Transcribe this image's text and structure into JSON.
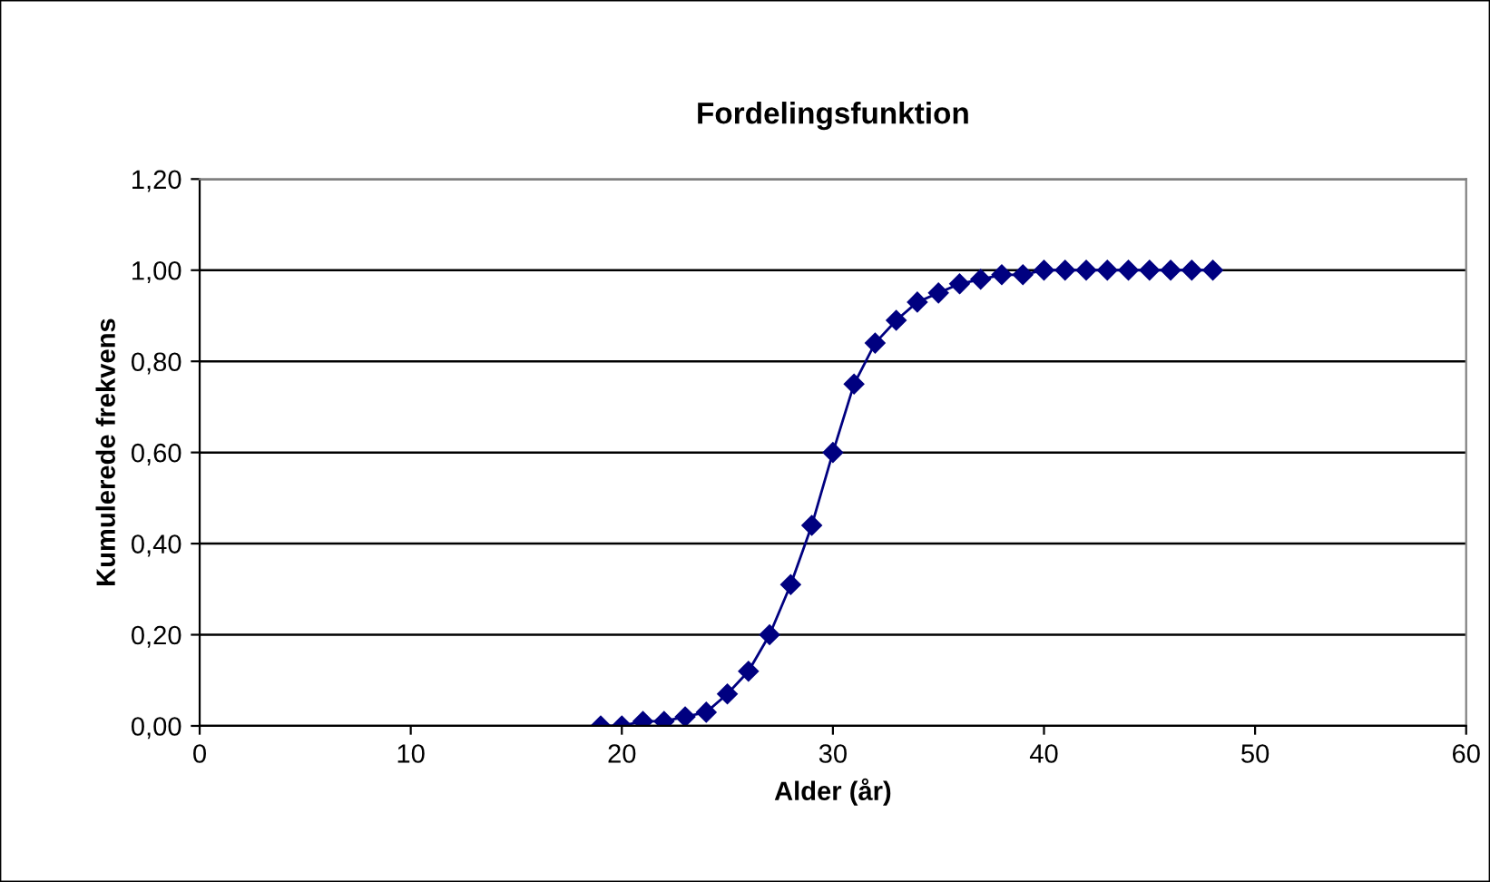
{
  "chart_data": {
    "type": "line",
    "title": "Fordelingsfunktion",
    "xlabel": "Alder (år)",
    "ylabel": "Kumulerede frekvens",
    "x": [
      19,
      20,
      21,
      22,
      23,
      24,
      25,
      26,
      27,
      28,
      29,
      30,
      31,
      32,
      33,
      34,
      35,
      36,
      37,
      38,
      39,
      40,
      41,
      42,
      43,
      44,
      45,
      46,
      47,
      48
    ],
    "series": [
      {
        "color": "#000080",
        "values": [
          0.0,
          0.0,
          0.01,
          0.01,
          0.02,
          0.03,
          0.07,
          0.12,
          0.2,
          0.31,
          0.44,
          0.6,
          0.75,
          0.84,
          0.89,
          0.93,
          0.95,
          0.97,
          0.98,
          0.99,
          0.99,
          1.0,
          1.0,
          1.0,
          1.0,
          1.0,
          1.0,
          1.0,
          1.0,
          1.0
        ]
      }
    ],
    "xlim": [
      0,
      60
    ],
    "xticks": [
      0,
      10,
      20,
      30,
      40,
      50,
      60
    ],
    "ylim": [
      0,
      1.2
    ],
    "yticks": [
      {
        "value": 0,
        "label": "0,00"
      },
      {
        "value": 0.2,
        "label": "0,20"
      },
      {
        "value": 0.4,
        "label": "0,40"
      },
      {
        "value": 0.6,
        "label": "0,60"
      },
      {
        "value": 0.8,
        "label": "0,80"
      },
      {
        "value": 1.0,
        "label": "1,00"
      },
      {
        "value": 1.2,
        "label": "1,20"
      }
    ],
    "grid": "y",
    "marker": "diamond",
    "line_style": "solid",
    "legend": false
  }
}
